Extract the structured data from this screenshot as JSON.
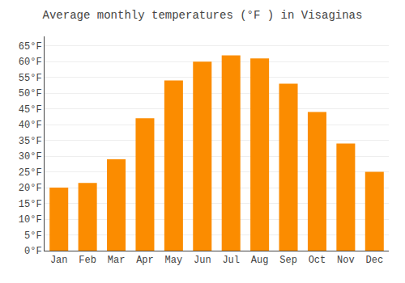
{
  "chart_data": {
    "type": "bar",
    "title": "Average monthly temperatures (°F ) in Visaginas",
    "categories": [
      "Jan",
      "Feb",
      "Mar",
      "Apr",
      "May",
      "Jun",
      "Jul",
      "Aug",
      "Sep",
      "Oct",
      "Nov",
      "Dec"
    ],
    "values": [
      20,
      21.5,
      29,
      42,
      54,
      60,
      62,
      61,
      53,
      44,
      34,
      25
    ],
    "color": "#FB8C00",
    "ylim": [
      0,
      68
    ],
    "yticks": [
      {
        "value": 0,
        "label": "0°F"
      },
      {
        "value": 5,
        "label": "5°F"
      },
      {
        "value": 10,
        "label": "10°F"
      },
      {
        "value": 15,
        "label": "15°F"
      },
      {
        "value": 20,
        "label": "20°F"
      },
      {
        "value": 25,
        "label": "25°F"
      },
      {
        "value": 30,
        "label": "30°F"
      },
      {
        "value": 35,
        "label": "35°F"
      },
      {
        "value": 40,
        "label": "40°F"
      },
      {
        "value": 45,
        "label": "45°F"
      },
      {
        "value": 50,
        "label": "50°F"
      },
      {
        "value": 55,
        "label": "55°F"
      },
      {
        "value": 60,
        "label": "60°F"
      },
      {
        "value": 65,
        "label": "65°F"
      }
    ],
    "grid": true
  }
}
